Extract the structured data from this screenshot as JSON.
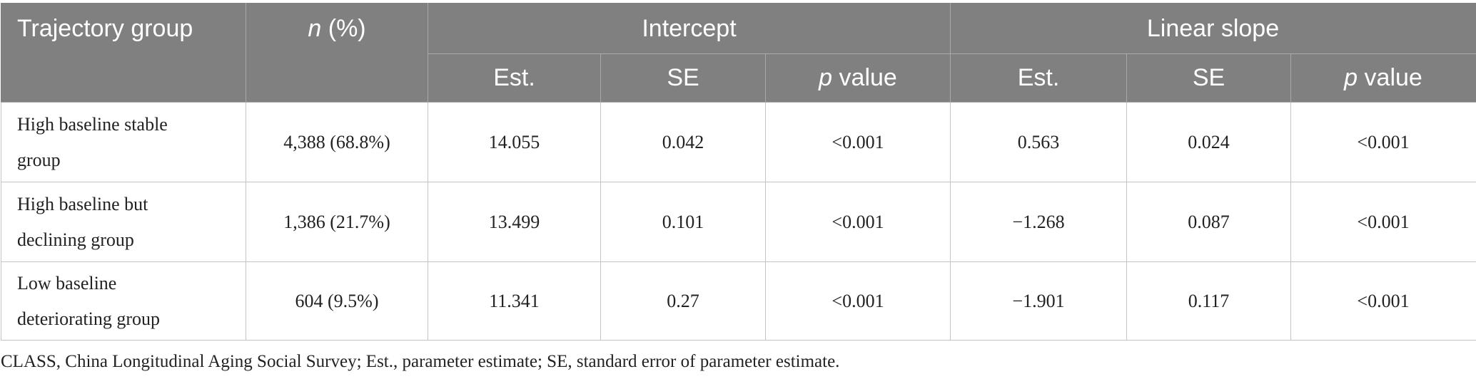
{
  "table": {
    "header": {
      "trajectory_group": "Trajectory group",
      "n_italic": "n",
      "n_rest": " (%)",
      "intercept": "Intercept",
      "linear_slope": "Linear slope",
      "est": "Est.",
      "se": "SE",
      "p_italic": "p",
      "p_rest": " value"
    },
    "rows": [
      {
        "label_lines": [
          "High baseline stable",
          "group"
        ],
        "n": "4,388 (68.8%)",
        "intercept_est": "14.055",
        "intercept_se": "0.042",
        "intercept_p": "<0.001",
        "slope_est": "0.563",
        "slope_se": "0.024",
        "slope_p": "<0.001"
      },
      {
        "label_lines": [
          "High baseline but",
          "declining group"
        ],
        "n": "1,386 (21.7%)",
        "intercept_est": "13.499",
        "intercept_se": "0.101",
        "intercept_p": "<0.001",
        "slope_est": "−1.268",
        "slope_se": "0.087",
        "slope_p": "<0.001"
      },
      {
        "label_lines": [
          "Low baseline",
          "deteriorating group"
        ],
        "n": "604 (9.5%)",
        "intercept_est": "11.341",
        "intercept_se": "0.27",
        "intercept_p": "<0.001",
        "slope_est": "−1.901",
        "slope_se": "0.117",
        "slope_p": "<0.001"
      }
    ]
  },
  "footnote": "CLASS, China Longitudinal Aging Social Survey; Est., parameter estimate; SE, standard error of parameter estimate.",
  "colors": {
    "header_bg": "#808080",
    "header_text": "#ffffff",
    "body_border": "#c4c4c4"
  }
}
